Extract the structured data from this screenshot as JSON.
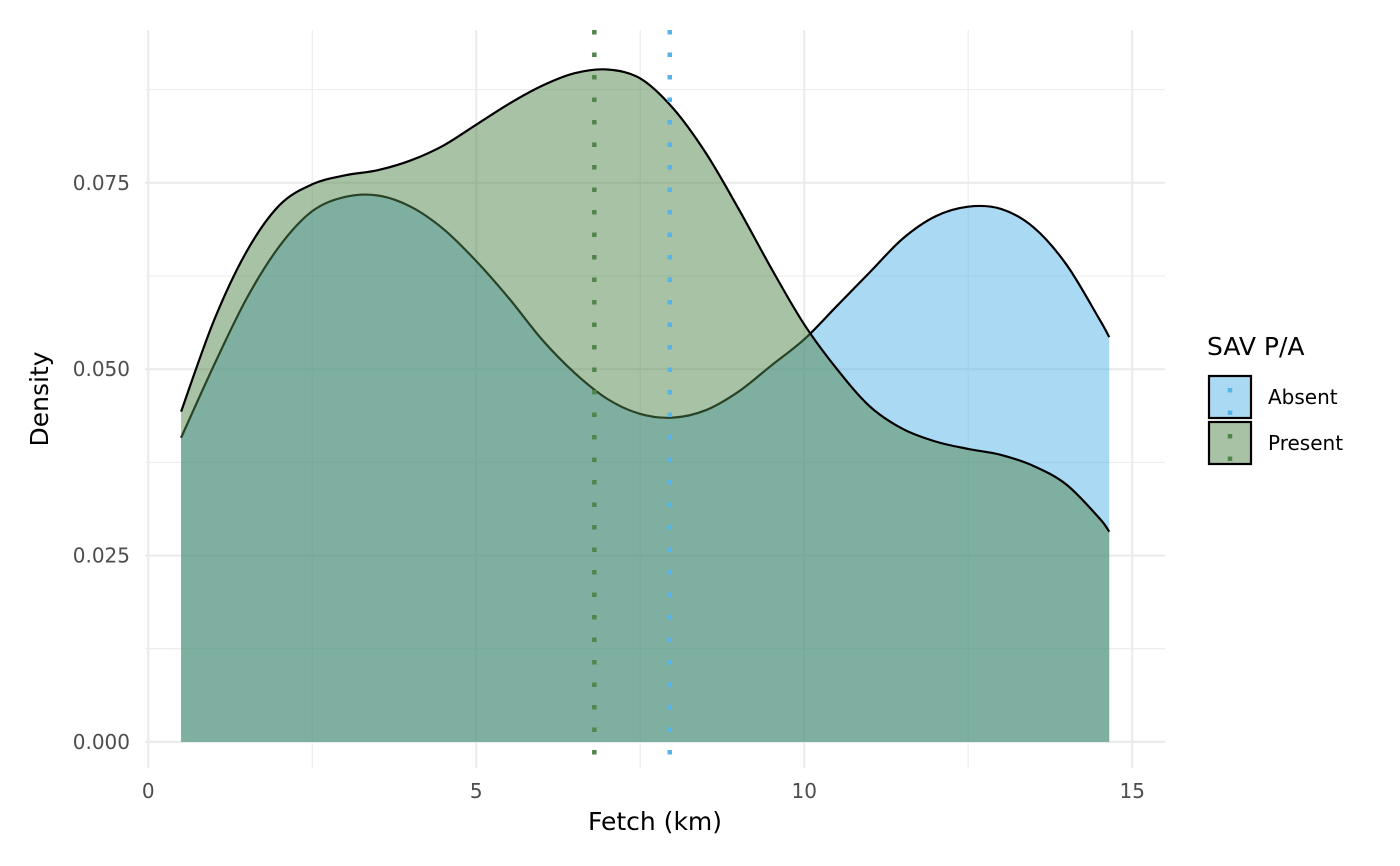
{
  "chart_data": {
    "type": "area",
    "subtype": "density",
    "xlabel": "Fetch (km)",
    "ylabel": "Density",
    "xlim": [
      -0.05,
      15.5
    ],
    "ylim": [
      -0.0035,
      0.0955
    ],
    "x_ticks": [
      0,
      5,
      10,
      15
    ],
    "x_tick_labels": [
      "0",
      "5",
      "10",
      "15"
    ],
    "y_ticks": [
      0,
      0.025,
      0.05,
      0.075
    ],
    "y_tick_labels": [
      "0.000",
      "0.025",
      "0.050",
      "0.075"
    ],
    "x_minor_ticks": [
      2.5,
      7.5,
      12.5
    ],
    "y_minor_ticks": [
      0.0125,
      0.0375,
      0.0625,
      0.0875
    ],
    "grid": true,
    "legend": {
      "title": "SAV P/A",
      "position": "right",
      "entries": [
        "Absent",
        "Present"
      ]
    },
    "series": [
      {
        "name": "Absent",
        "fill": "#56B4E9",
        "fill_opacity": 0.5,
        "mean_line_x": 7.95,
        "mean_line_color": "#56B4E9",
        "x": [
          0.5,
          1.0,
          1.5,
          2.0,
          2.5,
          3.0,
          3.5,
          4.0,
          4.5,
          5.0,
          5.5,
          6.0,
          6.5,
          7.0,
          7.5,
          8.0,
          8.5,
          9.0,
          9.5,
          10.0,
          10.5,
          11.0,
          11.5,
          12.0,
          12.5,
          13.0,
          13.5,
          14.0,
          14.5,
          14.65
        ],
        "values": [
          0.0408,
          0.0505,
          0.0595,
          0.0665,
          0.0712,
          0.0731,
          0.0733,
          0.0718,
          0.0688,
          0.0645,
          0.0595,
          0.054,
          0.0495,
          0.046,
          0.044,
          0.0435,
          0.0445,
          0.047,
          0.0505,
          0.054,
          0.0585,
          0.063,
          0.0675,
          0.0705,
          0.0718,
          0.0715,
          0.069,
          0.064,
          0.0567,
          0.0543
        ]
      },
      {
        "name": "Present",
        "fill": "#52854C",
        "fill_opacity": 0.5,
        "mean_line_x": 6.8,
        "mean_line_color": "#52854C",
        "x": [
          0.5,
          1.0,
          1.5,
          2.0,
          2.5,
          3.0,
          3.5,
          4.0,
          4.5,
          5.0,
          5.5,
          6.0,
          6.5,
          7.0,
          7.5,
          8.0,
          8.5,
          9.0,
          9.5,
          10.0,
          10.5,
          11.0,
          11.5,
          12.0,
          12.5,
          13.0,
          13.5,
          14.0,
          14.5,
          14.65
        ],
        "values": [
          0.0443,
          0.0565,
          0.0658,
          0.072,
          0.0748,
          0.076,
          0.0767,
          0.078,
          0.08,
          0.0828,
          0.0856,
          0.088,
          0.0897,
          0.0902,
          0.089,
          0.085,
          0.079,
          0.0715,
          0.0635,
          0.056,
          0.05,
          0.045,
          0.042,
          0.0403,
          0.0393,
          0.0385,
          0.037,
          0.0345,
          0.03,
          0.0282
        ]
      }
    ]
  }
}
